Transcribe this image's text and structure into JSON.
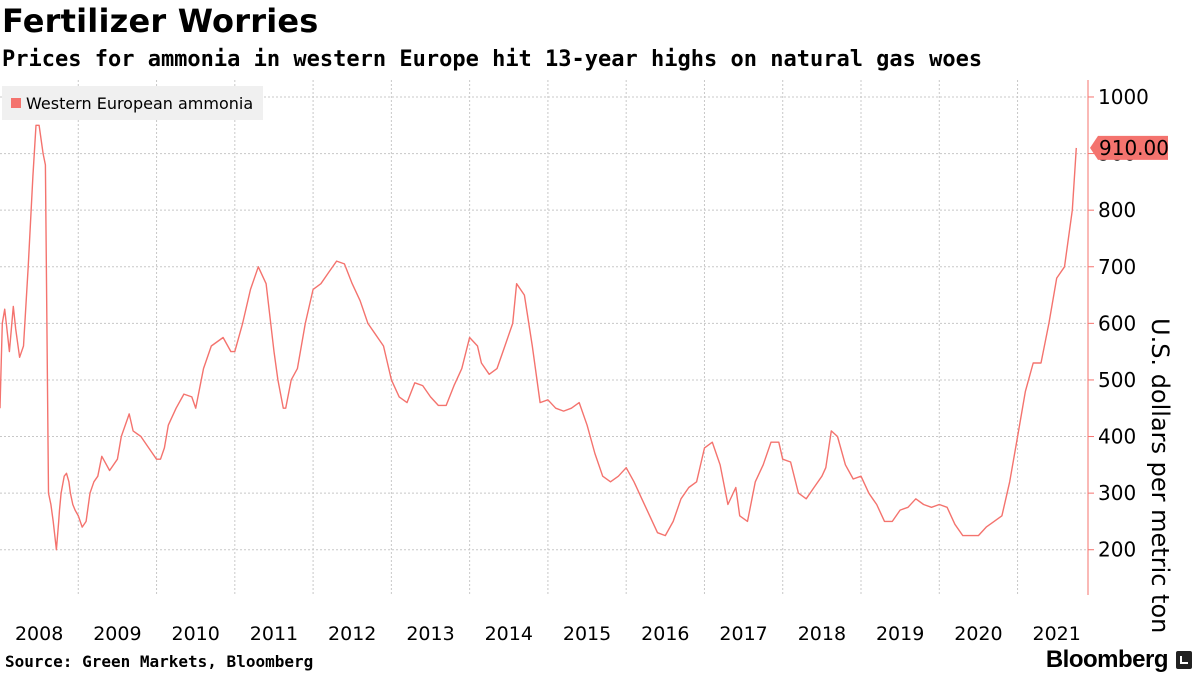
{
  "title": "Fertilizer Worries",
  "subtitle": "Prices for ammonia in western Europe hit 13-year highs on natural gas woes",
  "footer": {
    "source": "Source: Green Markets, Bloomberg",
    "brand": "Bloomberg"
  },
  "colors": {
    "series": "#f4736e",
    "grid": "#c8c8c8",
    "legend_bg": "#f0f0f0"
  },
  "chart_data": {
    "type": "line",
    "title": "Fertilizer Worries",
    "subtitle": "Prices for ammonia in western Europe hit 13-year highs on natural gas woes",
    "ylabel": "U.S. dollars per metric ton",
    "xlabel": "",
    "ylim": [
      120,
      1030
    ],
    "xlim": [
      2008.0,
      2021.9
    ],
    "y_ticks": [
      200,
      300,
      400,
      500,
      600,
      700,
      800,
      900,
      1000
    ],
    "x_tick_labels": [
      "2008",
      "2009",
      "2010",
      "2011",
      "2012",
      "2013",
      "2014",
      "2015",
      "2016",
      "2017",
      "2018",
      "2019",
      "2020",
      "2021"
    ],
    "grid": true,
    "legend_position": "top-left",
    "last_value_label": "910.00",
    "series": [
      {
        "name": "Western European ammonia",
        "x": [
          2008.0,
          2008.03,
          2008.06,
          2008.08,
          2008.12,
          2008.17,
          2008.2,
          2008.25,
          2008.3,
          2008.36,
          2008.42,
          2008.46,
          2008.5,
          2008.55,
          2008.58,
          2008.62,
          2008.65,
          2008.68,
          2008.72,
          2008.75,
          2008.76,
          2008.78,
          2008.82,
          2008.85,
          2008.88,
          2008.9,
          2008.93,
          2008.96,
          2009.0,
          2009.05,
          2009.1,
          2009.15,
          2009.2,
          2009.25,
          2009.3,
          2009.4,
          2009.5,
          2009.55,
          2009.65,
          2009.7,
          2009.8,
          2009.9,
          2010.0,
          2010.05,
          2010.1,
          2010.15,
          2010.25,
          2010.35,
          2010.45,
          2010.5,
          2010.6,
          2010.7,
          2010.85,
          2010.95,
          2011.0,
          2011.1,
          2011.2,
          2011.3,
          2011.4,
          2011.5,
          2011.55,
          2011.62,
          2011.65,
          2011.72,
          2011.8,
          2011.9,
          2012.0,
          2012.1,
          2012.2,
          2012.3,
          2012.4,
          2012.5,
          2012.6,
          2012.7,
          2012.8,
          2012.9,
          2013.0,
          2013.1,
          2013.2,
          2013.3,
          2013.4,
          2013.5,
          2013.6,
          2013.7,
          2013.8,
          2013.9,
          2014.0,
          2014.1,
          2014.15,
          2014.25,
          2014.35,
          2014.45,
          2014.55,
          2014.6,
          2014.7,
          2014.8,
          2014.9,
          2015.0,
          2015.1,
          2015.2,
          2015.3,
          2015.4,
          2015.5,
          2015.6,
          2015.7,
          2015.8,
          2015.9,
          2016.0,
          2016.1,
          2016.2,
          2016.3,
          2016.4,
          2016.5,
          2016.6,
          2016.7,
          2016.8,
          2016.9,
          2017.0,
          2017.1,
          2017.15,
          2017.2,
          2017.3,
          2017.4,
          2017.45,
          2017.55,
          2017.65,
          2017.75,
          2017.85,
          2017.95,
          2018.0,
          2018.1,
          2018.2,
          2018.3,
          2018.4,
          2018.5,
          2018.55,
          2018.62,
          2018.7,
          2018.8,
          2018.9,
          2019.0,
          2019.1,
          2019.15,
          2019.2,
          2019.3,
          2019.4,
          2019.5,
          2019.6,
          2019.7,
          2019.8,
          2019.9,
          2020.0,
          2020.1,
          2020.2,
          2020.3,
          2020.4,
          2020.5,
          2020.6,
          2020.7,
          2020.8,
          2020.9,
          2021.0,
          2021.1,
          2021.2,
          2021.3,
          2021.4,
          2021.5,
          2021.6,
          2021.7,
          2021.75
        ],
        "values": [
          450,
          600,
          625,
          600,
          550,
          630,
          590,
          540,
          560,
          700,
          860,
          950,
          950,
          900,
          880,
          300,
          280,
          250,
          200,
          250,
          270,
          300,
          330,
          335,
          320,
          300,
          280,
          270,
          260,
          240,
          250,
          300,
          320,
          330,
          365,
          340,
          360,
          400,
          440,
          410,
          400,
          380,
          360,
          360,
          380,
          420,
          450,
          475,
          470,
          450,
          520,
          560,
          575,
          550,
          550,
          600,
          660,
          700,
          670,
          550,
          500,
          450,
          450,
          500,
          520,
          600,
          660,
          670,
          690,
          710,
          705,
          670,
          640,
          600,
          580,
          560,
          500,
          470,
          460,
          495,
          490,
          470,
          455,
          455,
          490,
          520,
          575,
          560,
          530,
          510,
          520,
          560,
          600,
          670,
          650,
          560,
          460,
          465,
          450,
          445,
          450,
          460,
          420,
          370,
          330,
          320,
          330,
          345,
          320,
          290,
          260,
          230,
          225,
          250,
          290,
          310,
          320,
          380,
          390,
          370,
          350,
          280,
          310,
          260,
          250,
          320,
          350,
          390,
          390,
          360,
          355,
          300,
          290,
          310,
          330,
          345,
          410,
          400,
          350,
          325,
          330,
          300,
          290,
          280,
          250,
          250,
          270,
          275,
          290,
          280,
          275,
          280,
          275,
          245,
          225,
          225,
          225,
          240,
          250,
          260,
          320,
          400,
          480,
          530,
          530,
          600,
          680,
          700,
          800,
          910
        ]
      }
    ]
  }
}
